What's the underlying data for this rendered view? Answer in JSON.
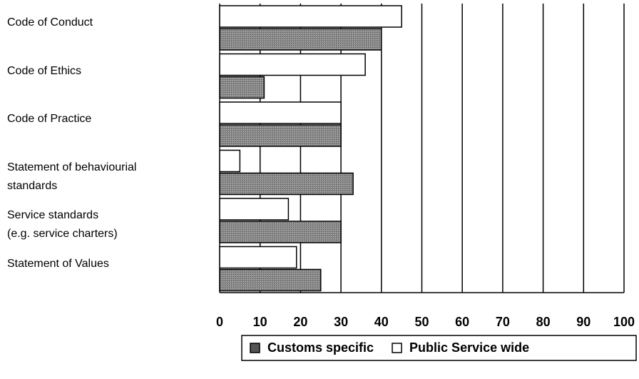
{
  "chart_data": {
    "type": "hbar",
    "categories": [
      "Code of Conduct",
      "Code of Ethics",
      "Code of Practice",
      "Statement of behaviourial\nstandards",
      "Service standards\n(e.g. service charters)",
      "Statement of Values"
    ],
    "series": [
      {
        "name": "Customs specific",
        "color": "#8a8a8a",
        "values": [
          40,
          11,
          30,
          33,
          30,
          25
        ]
      },
      {
        "name": "Public Service wide",
        "color": "#ffffff",
        "values": [
          45,
          36,
          30,
          5,
          17,
          19
        ]
      }
    ],
    "xlim": [
      0,
      100
    ],
    "xticks": [
      0,
      10,
      20,
      30,
      40,
      50,
      60,
      70,
      80,
      90,
      100
    ],
    "grid": true
  }
}
